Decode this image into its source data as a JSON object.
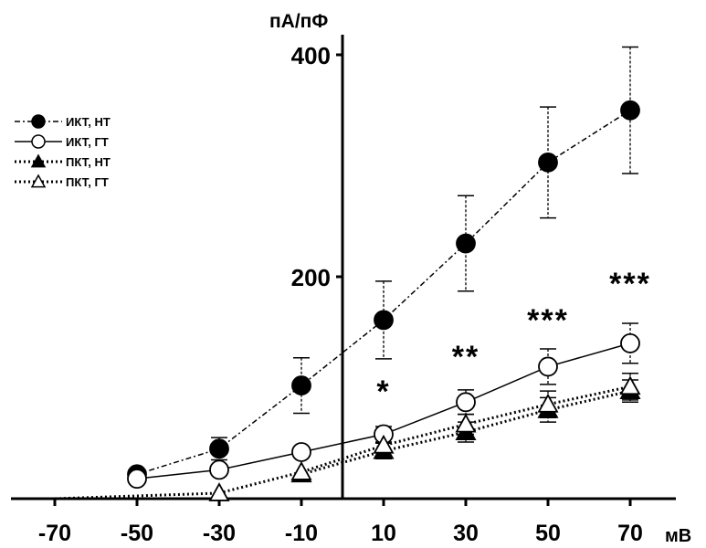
{
  "chart_data": {
    "type": "line",
    "ylabel": "пА/пФ",
    "xlabel": "мВ",
    "x": [
      -70,
      -50,
      -30,
      -10,
      10,
      30,
      50,
      70
    ],
    "xlim": [
      -70,
      70
    ],
    "ylim": [
      0,
      400
    ],
    "x_ticks": [
      "-70",
      "-50",
      "-30",
      "-10",
      "10",
      "30",
      "50",
      "70"
    ],
    "y_ticks": [
      "200",
      "400"
    ],
    "y_tick_values": [
      200,
      400
    ],
    "legend_position": "top-left",
    "grid": false,
    "series": [
      {
        "name": "ИКТ, НТ",
        "marker": "circle-filled",
        "line": "dash-dot",
        "points": [
          {
            "x": -50,
            "y": 22
          },
          {
            "x": -30,
            "y": 45,
            "err": 10
          },
          {
            "x": -10,
            "y": 102,
            "err": 25
          },
          {
            "x": 10,
            "y": 161,
            "err": 35
          },
          {
            "x": 30,
            "y": 230,
            "err": 43
          },
          {
            "x": 50,
            "y": 303,
            "err": 50
          },
          {
            "x": 70,
            "y": 350,
            "err": 57
          }
        ]
      },
      {
        "name": "ИКТ, ГТ",
        "marker": "circle-open",
        "line": "solid",
        "points": [
          {
            "x": -50,
            "y": 18
          },
          {
            "x": -30,
            "y": 26
          },
          {
            "x": -10,
            "y": 42
          },
          {
            "x": 10,
            "y": 58,
            "err": 7
          },
          {
            "x": 30,
            "y": 87,
            "err": 11
          },
          {
            "x": 50,
            "y": 119,
            "err": 16
          },
          {
            "x": 70,
            "y": 140,
            "err": 18
          }
        ]
      },
      {
        "name": "ПКТ, НТ",
        "marker": "triangle-filled",
        "line": "dotted",
        "points": [
          {
            "x": -10,
            "y": 22
          },
          {
            "x": 10,
            "y": 43,
            "err": 7
          },
          {
            "x": 30,
            "y": 60,
            "err": 9
          },
          {
            "x": 50,
            "y": 80,
            "err": 11
          },
          {
            "x": 70,
            "y": 97,
            "err": 10
          }
        ]
      },
      {
        "name": "ПКТ, ГТ",
        "marker": "triangle-open",
        "line": "dotted",
        "points": [
          {
            "x": -70,
            "y": 0
          },
          {
            "x": -30,
            "y": 5
          },
          {
            "x": -10,
            "y": 24
          },
          {
            "x": 10,
            "y": 48
          },
          {
            "x": 30,
            "y": 67,
            "err": 9
          },
          {
            "x": 50,
            "y": 85,
            "err": 12
          },
          {
            "x": 70,
            "y": 101,
            "err": 12
          }
        ]
      }
    ],
    "annotations": [
      {
        "x": 10,
        "text": "*"
      },
      {
        "x": 30,
        "text": "**"
      },
      {
        "x": 50,
        "text": "***"
      },
      {
        "x": 70,
        "text": "***"
      }
    ]
  }
}
